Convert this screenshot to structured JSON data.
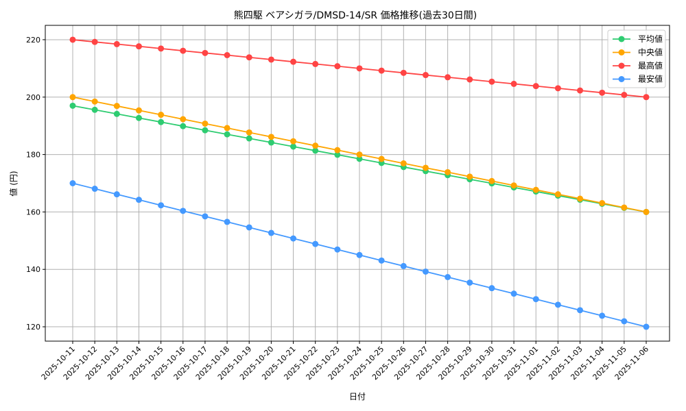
{
  "chart_data": {
    "type": "line",
    "title": "熊四駆 ベアシガラ/DMSD-14/SR 価格推移(過去30日間)",
    "xlabel": "日付",
    "ylabel": "値 (円)",
    "ylim": [
      115,
      225
    ],
    "yticks": [
      120,
      140,
      160,
      180,
      200,
      220
    ],
    "grid": true,
    "legend_position": "top-right",
    "x": [
      "2025-10-11",
      "2025-10-12",
      "2025-10-13",
      "2025-10-14",
      "2025-10-15",
      "2025-10-16",
      "2025-10-17",
      "2025-10-18",
      "2025-10-19",
      "2025-10-20",
      "2025-10-21",
      "2025-10-22",
      "2025-10-23",
      "2025-10-24",
      "2025-10-25",
      "2025-10-26",
      "2025-10-27",
      "2025-10-28",
      "2025-10-29",
      "2025-10-30",
      "2025-10-31",
      "2025-11-01",
      "2025-11-02",
      "2025-11-03",
      "2025-11-04",
      "2025-11-05",
      "2025-11-06"
    ],
    "series": [
      {
        "name": "平均値",
        "color": "#2ecc71",
        "values": [
          197,
          195.58,
          194.15,
          192.73,
          191.31,
          189.88,
          188.46,
          187.04,
          185.62,
          184.19,
          182.77,
          181.35,
          179.92,
          178.5,
          177.08,
          175.65,
          174.23,
          172.81,
          171.38,
          169.96,
          168.54,
          167.12,
          165.69,
          164.27,
          162.85,
          161.42,
          160
        ]
      },
      {
        "name": "中央値",
        "color": "#ffa500",
        "values": [
          200,
          198.46,
          196.92,
          195.38,
          193.85,
          192.31,
          190.77,
          189.23,
          187.69,
          186.15,
          184.62,
          183.08,
          181.54,
          180,
          178.46,
          176.92,
          175.38,
          173.85,
          172.31,
          170.77,
          169.23,
          167.69,
          166.15,
          164.62,
          163.08,
          161.54,
          160
        ]
      },
      {
        "name": "最高値",
        "color": "#ff4444",
        "values": [
          220,
          219.23,
          218.46,
          217.69,
          216.92,
          216.15,
          215.38,
          214.62,
          213.85,
          213.08,
          212.31,
          211.54,
          210.77,
          210,
          209.23,
          208.46,
          207.69,
          206.92,
          206.15,
          205.38,
          204.62,
          203.85,
          203.08,
          202.31,
          201.54,
          200.77,
          200
        ]
      },
      {
        "name": "最安値",
        "color": "#4499ff",
        "values": [
          170,
          168.08,
          166.15,
          164.23,
          162.31,
          160.38,
          158.46,
          156.54,
          154.62,
          152.69,
          150.77,
          148.85,
          146.92,
          145,
          143.08,
          141.15,
          139.23,
          137.31,
          135.38,
          133.46,
          131.54,
          129.62,
          127.69,
          125.77,
          123.85,
          121.92,
          120
        ]
      }
    ]
  }
}
